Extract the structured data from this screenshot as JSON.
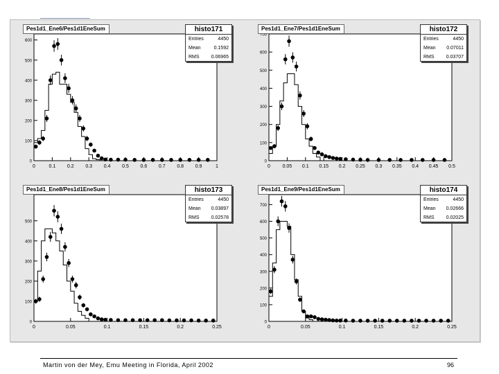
{
  "footer": {
    "text": "Martin von der Mey, Emu Meeting in Florida, April 2002",
    "page": "96"
  },
  "chart_data": [
    {
      "type": "histogram",
      "title": "Pes1d1_Ene6/Pes1d1EneSum",
      "stats": {
        "name": "histo171",
        "entries_label": "Entries",
        "entries": "4450",
        "mean_label": "Mean",
        "mean": "0.1592",
        "rms_label": "RMS",
        "rms": "0.06965"
      },
      "xlim": [
        0,
        1
      ],
      "ylim": [
        0,
        630
      ],
      "xticks": [
        0,
        0.1,
        0.2,
        0.3,
        0.4,
        0.5,
        0.6,
        0.7,
        0.8,
        0.9,
        1
      ],
      "xtick_labels": [
        "0",
        "0.1",
        "0.2",
        "0.3",
        "0.4",
        "0.5",
        "0.6",
        "0.7",
        "0.8",
        "0.9",
        "1"
      ],
      "yticks": [
        0,
        100,
        200,
        300,
        400,
        500,
        600
      ],
      "ytick_labels": [
        "0",
        "100",
        "200",
        "300",
        "400",
        "500",
        "600"
      ],
      "bin_edges": [
        0,
        0.02,
        0.04,
        0.06,
        0.08,
        0.1,
        0.12,
        0.14,
        0.16,
        0.18,
        0.2,
        0.22,
        0.24,
        0.26,
        0.28,
        0.3,
        0.32,
        0.34,
        0.36
      ],
      "hist_values": [
        90,
        110,
        150,
        250,
        380,
        430,
        440,
        380,
        380,
        330,
        290,
        240,
        170,
        120,
        60,
        30,
        10,
        5
      ],
      "points": {
        "x": [
          0.01,
          0.03,
          0.05,
          0.07,
          0.09,
          0.11,
          0.13,
          0.15,
          0.17,
          0.19,
          0.21,
          0.23,
          0.25,
          0.27,
          0.29,
          0.31,
          0.33,
          0.35,
          0.37,
          0.39,
          0.42,
          0.46,
          0.5,
          0.55,
          0.6,
          0.65,
          0.7,
          0.75,
          0.8,
          0.85,
          0.9,
          0.95
        ],
        "y": [
          70,
          90,
          110,
          210,
          400,
          570,
          580,
          500,
          410,
          360,
          300,
          260,
          210,
          160,
          110,
          80,
          50,
          25,
          12,
          6,
          5,
          5,
          5,
          4,
          4,
          4,
          4,
          4,
          4,
          4,
          4,
          4
        ]
      }
    },
    {
      "type": "histogram",
      "title": "Pes1d1_Ene7/Pes1d1EneSum",
      "stats": {
        "name": "histo172",
        "entries_label": "Entries",
        "entries": "4450",
        "mean_label": "Mean",
        "mean": "0.07011",
        "rms_label": "RMS",
        "rms": "0.03707"
      },
      "xlim": [
        0,
        0.5
      ],
      "ylim": [
        0,
        700
      ],
      "xticks": [
        0,
        0.05,
        0.1,
        0.15,
        0.2,
        0.25,
        0.3,
        0.35,
        0.4,
        0.45,
        0.5
      ],
      "xtick_labels": [
        "0",
        "0.05",
        "0.1",
        "0.15",
        "0.2",
        "0.25",
        "0.3",
        "0.35",
        "0.4",
        "0.45",
        "0.5"
      ],
      "yticks": [
        0,
        100,
        200,
        300,
        400,
        500,
        600,
        700
      ],
      "ytick_labels": [
        "0",
        "100",
        "200",
        "300",
        "400",
        "500",
        "600",
        "700"
      ],
      "bin_edges": [
        0,
        0.01,
        0.02,
        0.03,
        0.04,
        0.05,
        0.06,
        0.07,
        0.08,
        0.09,
        0.1,
        0.11,
        0.12,
        0.13,
        0.14
      ],
      "hist_values": [
        40,
        80,
        200,
        330,
        430,
        480,
        480,
        420,
        300,
        200,
        120,
        80,
        40,
        20
      ],
      "points": {
        "x": [
          0.005,
          0.015,
          0.025,
          0.035,
          0.045,
          0.055,
          0.065,
          0.075,
          0.085,
          0.095,
          0.105,
          0.115,
          0.125,
          0.135,
          0.145,
          0.155,
          0.165,
          0.175,
          0.185,
          0.195,
          0.21,
          0.23,
          0.25,
          0.27,
          0.3,
          0.33,
          0.36,
          0.39,
          0.42,
          0.45,
          0.48
        ],
        "y": [
          70,
          80,
          180,
          300,
          560,
          660,
          570,
          520,
          360,
          260,
          190,
          120,
          70,
          45,
          35,
          25,
          20,
          15,
          12,
          10,
          8,
          6,
          5,
          4,
          4,
          4,
          4,
          4,
          4,
          4,
          4
        ]
      }
    },
    {
      "type": "histogram",
      "title": "Pes1d1_Ene8/Pes1d1EneSum",
      "stats": {
        "name": "histo173",
        "entries_label": "Entries",
        "entries": "4450",
        "mean_label": "Mean",
        "mean": "0.03897",
        "rms_label": "RMS",
        "rms": "0.02578"
      },
      "xlim": [
        0,
        0.25
      ],
      "ylim": [
        0,
        630
      ],
      "xticks": [
        0,
        0.05,
        0.1,
        0.15,
        0.2,
        0.25
      ],
      "xtick_labels": [
        "0",
        "0.05",
        "0.1",
        "0.15",
        "0.2",
        "0.25"
      ],
      "yticks": [
        0,
        100,
        200,
        300,
        400,
        500
      ],
      "ytick_labels": [
        "0",
        "100",
        "200",
        "300",
        "400",
        "500"
      ],
      "bin_edges": [
        0,
        0.005,
        0.01,
        0.015,
        0.02,
        0.025,
        0.03,
        0.035,
        0.04,
        0.045,
        0.05,
        0.055,
        0.06,
        0.065,
        0.07,
        0.075
      ],
      "hist_values": [
        100,
        250,
        400,
        460,
        460,
        440,
        400,
        350,
        280,
        200,
        150,
        90,
        50,
        30,
        15
      ],
      "points": {
        "x": [
          0.0025,
          0.0075,
          0.0125,
          0.0175,
          0.0225,
          0.0275,
          0.0325,
          0.0375,
          0.0425,
          0.0475,
          0.0525,
          0.0575,
          0.0625,
          0.0675,
          0.0725,
          0.0775,
          0.0825,
          0.0875,
          0.0925,
          0.0975,
          0.105,
          0.115,
          0.125,
          0.135,
          0.145,
          0.155,
          0.165,
          0.175,
          0.185,
          0.195,
          0.205,
          0.215,
          0.225,
          0.235,
          0.245
        ],
        "y": [
          100,
          110,
          210,
          320,
          420,
          550,
          520,
          460,
          370,
          290,
          210,
          180,
          120,
          80,
          60,
          35,
          25,
          15,
          10,
          8,
          7,
          6,
          6,
          6,
          6,
          6,
          6,
          6,
          5,
          5,
          5,
          5,
          4,
          4,
          4
        ]
      }
    },
    {
      "type": "histogram",
      "title": "Pes1d1_Ene9/Pes1d1EneSum",
      "stats": {
        "name": "histo174",
        "entries_label": "Entries",
        "entries": "4450",
        "mean_label": "Mean",
        "mean": "0.02666",
        "rms_label": "RMS",
        "rms": "0.02025"
      },
      "xlim": [
        0,
        0.25
      ],
      "ylim": [
        0,
        760
      ],
      "xticks": [
        0,
        0.05,
        0.1,
        0.15,
        0.2,
        0.25
      ],
      "xtick_labels": [
        "0",
        "0.05",
        "0.1",
        "0.15",
        "0.2",
        "0.25"
      ],
      "yticks": [
        0,
        100,
        200,
        300,
        400,
        500,
        600,
        700
      ],
      "ytick_labels": [
        "0",
        "100",
        "200",
        "300",
        "400",
        "500",
        "600",
        "700"
      ],
      "bin_edges": [
        0,
        0.005,
        0.01,
        0.015,
        0.02,
        0.025,
        0.03,
        0.035,
        0.04,
        0.045,
        0.05,
        0.055,
        0.06
      ],
      "hist_values": [
        150,
        350,
        550,
        600,
        600,
        570,
        400,
        250,
        150,
        60,
        20,
        10
      ],
      "points": {
        "x": [
          0.0025,
          0.0075,
          0.0125,
          0.0175,
          0.0225,
          0.0275,
          0.0325,
          0.0375,
          0.0425,
          0.0475,
          0.0525,
          0.0575,
          0.0625,
          0.0675,
          0.0725,
          0.0775,
          0.0825,
          0.0875,
          0.0925,
          0.0975,
          0.105,
          0.115,
          0.125,
          0.135,
          0.145,
          0.155,
          0.165,
          0.175,
          0.185,
          0.195,
          0.205,
          0.215,
          0.225,
          0.235,
          0.245
        ],
        "y": [
          180,
          310,
          600,
          720,
          690,
          560,
          370,
          240,
          130,
          60,
          30,
          30,
          25,
          15,
          12,
          10,
          8,
          6,
          5,
          5,
          5,
          4,
          4,
          4,
          4,
          4,
          4,
          4,
          4,
          4,
          4,
          4,
          4,
          4,
          4
        ]
      }
    }
  ]
}
